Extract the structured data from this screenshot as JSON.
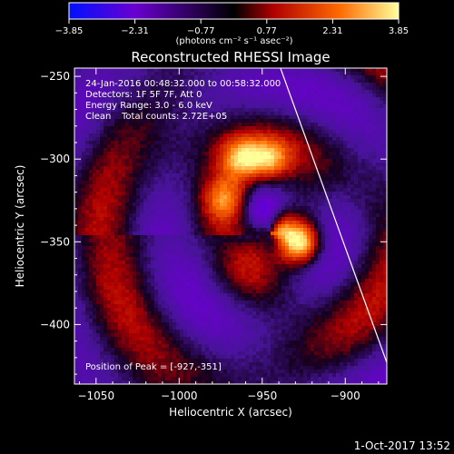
{
  "title": "Reconstructed RHESSI Image",
  "colorbar": {
    "unit_label": "(photons cm⁻² s⁻¹ asec⁻²)",
    "ticks": [
      "-3.85",
      "-2.31",
      "-0.77",
      "0.77",
      "2.31",
      "3.85"
    ],
    "range": [
      -3.85,
      3.85
    ],
    "colors": [
      "#0010ff",
      "#6a00d0",
      "#000000",
      "#b00000",
      "#ff6a00",
      "#ffff9a"
    ]
  },
  "info": {
    "time_range": "24-Jan-2016 00:48:32.000 to 00:58:32.000",
    "detectors": "Detectors: 1F 5F 7F, Att 0",
    "energy": "Energy Range: 3.0 - 6.0 keV",
    "method": "Clean",
    "total_counts": "Total counts: 2.72E+05",
    "peak": "Position of Peak = [-927,-351]"
  },
  "axes": {
    "xlabel": "Heliocentric X (arcsec)",
    "ylabel": "Heliocentric Y (arcsec)",
    "xlim": [
      -1063,
      -875
    ],
    "ylim": [
      -436,
      -245
    ],
    "xticks": [
      -1050,
      -1000,
      -950,
      -900
    ],
    "yticks": [
      -400,
      -350,
      -300,
      -250
    ],
    "xtick_labels": [
      "−1050",
      "−1000",
      "−950",
      "−900"
    ],
    "ytick_labels": [
      "−400",
      "−350",
      "−300",
      "−250"
    ]
  },
  "peak": {
    "x": -927,
    "y": -351
  },
  "limb_line": {
    "x1": -939,
    "y1": -245,
    "x2": -875,
    "y2": -423
  },
  "footer": {
    "date": "1-Oct-2017 13:52"
  }
}
